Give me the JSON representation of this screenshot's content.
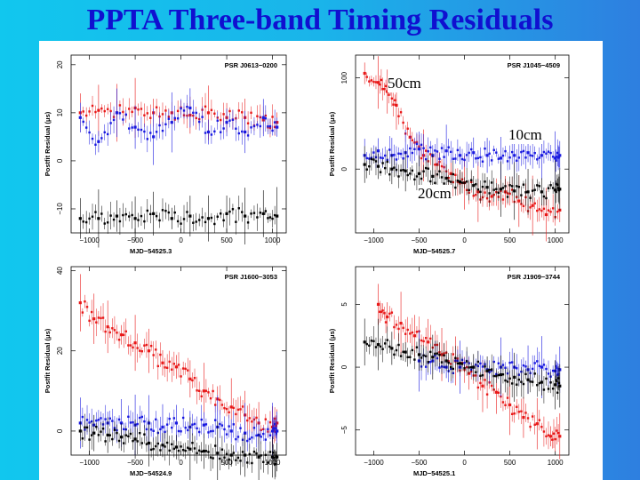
{
  "slide": {
    "title": "PPTA Three-band Timing Residuals"
  },
  "annotations": {
    "band_50cm": "50cm",
    "band_10cm": "10cm",
    "band_20cm": "20cm"
  },
  "colors": {
    "band_50cm": "#e81818",
    "band_10cm": "#1818e0",
    "band_20cm": "#000000"
  },
  "chart_data": [
    {
      "type": "scatter",
      "title": "PSR J0613−0200",
      "xlabel": "MJD−54525.3",
      "ylabel": "Postfit Residual (μs)",
      "xlim": [
        -1200,
        1150
      ],
      "ylim": [
        -15,
        22
      ],
      "xticks": [
        -1000,
        -500,
        0,
        500,
        1000
      ],
      "yticks": [
        -10,
        0,
        10,
        20
      ],
      "series": [
        {
          "name": "50cm",
          "color": "#e81818",
          "x": [
            -1100,
            -900,
            -700,
            -500,
            -300,
            -100,
            100,
            300,
            500,
            700,
            900,
            1050
          ],
          "y": [
            10,
            10.5,
            10,
            11,
            10,
            10,
            9.5,
            10,
            9,
            9,
            8.5,
            8
          ]
        },
        {
          "name": "10cm",
          "color": "#1818e0",
          "x": [
            -1100,
            -900,
            -700,
            -500,
            -300,
            -100,
            100,
            300,
            500,
            700,
            900,
            1050
          ],
          "y": [
            9,
            4,
            10,
            7,
            5,
            8,
            11,
            6,
            8,
            6,
            9,
            7
          ]
        },
        {
          "name": "20cm",
          "color": "#000000",
          "x": [
            -1100,
            -900,
            -700,
            -500,
            -300,
            -100,
            100,
            300,
            500,
            700,
            900,
            1050
          ],
          "y": [
            -12,
            -12,
            -11.5,
            -12,
            -11,
            -12,
            -11.5,
            -12,
            -11,
            -11.5,
            -11,
            -11.5
          ]
        }
      ]
    },
    {
      "type": "scatter",
      "title": "PSR J1045−4509",
      "xlabel": "MJD−54525.7",
      "ylabel": "Postfit Residual (μs)",
      "xlim": [
        -1200,
        1150
      ],
      "ylim": [
        -70,
        125
      ],
      "xticks": [
        -1000,
        -500,
        0,
        500,
        1000
      ],
      "yticks": [
        0,
        100
      ],
      "series": [
        {
          "name": "50cm",
          "color": "#e81818",
          "x": [
            -1100,
            -950,
            -850,
            -750,
            -600,
            -450,
            -300,
            -150,
            0,
            150,
            300,
            450,
            600,
            750,
            900,
            1050
          ],
          "y": [
            105,
            95,
            85,
            70,
            35,
            15,
            5,
            -5,
            -15,
            -25,
            -30,
            -25,
            -35,
            -40,
            -50,
            -45
          ]
        },
        {
          "name": "10cm",
          "color": "#1818e0",
          "x": [
            -1100,
            -950,
            -800,
            -650,
            -500,
            -350,
            -200,
            -50,
            100,
            250,
            400,
            550,
            700,
            850,
            1000,
            1050
          ],
          "y": [
            15,
            20,
            15,
            18,
            22,
            15,
            20,
            15,
            18,
            15,
            12,
            15,
            18,
            15,
            12,
            15
          ]
        },
        {
          "name": "20cm",
          "color": "#000000",
          "x": [
            -1100,
            -950,
            -800,
            -650,
            -500,
            -350,
            -200,
            -50,
            100,
            250,
            400,
            550,
            700,
            850,
            1000,
            1050
          ],
          "y": [
            5,
            3,
            0,
            -2,
            -5,
            -8,
            -10,
            -14,
            -18,
            -20,
            -22,
            -24,
            -25,
            -25,
            -23,
            -22
          ]
        }
      ]
    },
    {
      "type": "scatter",
      "title": "PSR J1600−3053",
      "xlabel": "MJD−54524.9",
      "ylabel": "Postfit Residual (μs)",
      "xlim": [
        -1200,
        1150
      ],
      "ylim": [
        -6,
        41
      ],
      "xticks": [
        -1000,
        -500,
        0,
        500,
        1000
      ],
      "yticks": [
        0,
        20,
        40
      ],
      "series": [
        {
          "name": "50cm",
          "color": "#e81818",
          "x": [
            -1100,
            -950,
            -800,
            -650,
            -500,
            -350,
            -200,
            -50,
            100,
            250,
            400,
            550,
            700,
            850,
            1000,
            1050
          ],
          "y": [
            32,
            28,
            26,
            24,
            22,
            20,
            17,
            16,
            13,
            10,
            8,
            6,
            4,
            2,
            1,
            2
          ]
        },
        {
          "name": "10cm",
          "color": "#1818e0",
          "x": [
            -1100,
            -950,
            -800,
            -650,
            -500,
            -350,
            -200,
            -50,
            100,
            250,
            400,
            550,
            700,
            850,
            1000,
            1050
          ],
          "y": [
            2,
            1.5,
            2,
            2,
            1.5,
            2,
            1,
            2,
            1,
            1.5,
            1,
            0,
            -0.5,
            -1,
            0,
            0
          ]
        },
        {
          "name": "20cm",
          "color": "#000000",
          "x": [
            -1100,
            -950,
            -800,
            -650,
            -500,
            -350,
            -200,
            -50,
            100,
            250,
            400,
            550,
            700,
            850,
            1000,
            1050
          ],
          "y": [
            0,
            -0.5,
            -1,
            -1.5,
            -2,
            -3,
            -3.5,
            -4,
            -4.5,
            -5,
            -5.5,
            -6,
            -6,
            -6.5,
            -6.5,
            -6.5
          ]
        }
      ]
    },
    {
      "type": "scatter",
      "title": "PSR J1909−3744",
      "xlabel": "MJD−54525.1",
      "ylabel": "Postfit Residual (μs)",
      "xlim": [
        -1200,
        1150
      ],
      "ylim": [
        -7,
        8
      ],
      "xticks": [
        -1000,
        -500,
        0,
        500,
        1000
      ],
      "yticks": [
        -5,
        0,
        5
      ],
      "series": [
        {
          "name": "50cm",
          "color": "#e81818",
          "x": [
            -950,
            -850,
            -700,
            -550,
            -400,
            -250,
            -100,
            50,
            200,
            350,
            500,
            650,
            800,
            950,
            1050
          ],
          "y": [
            5,
            4,
            3.5,
            2.5,
            2,
            1,
            0.5,
            -0.5,
            -1.5,
            -2,
            -3,
            -4,
            -4.5,
            -5.5,
            -5.5
          ]
        },
        {
          "name": "10cm",
          "color": "#1818e0",
          "x": [
            -500,
            -350,
            -200,
            -50,
            100,
            250,
            400,
            550,
            700,
            850,
            1000,
            1050
          ],
          "y": [
            0.5,
            0.5,
            0,
            0,
            0,
            -0.2,
            0,
            0,
            -0.2,
            0,
            -0.3,
            -0.2
          ]
        },
        {
          "name": "20cm",
          "color": "#000000",
          "x": [
            -1100,
            -950,
            -800,
            -650,
            -500,
            -350,
            -200,
            -50,
            100,
            250,
            400,
            550,
            700,
            850,
            1000,
            1050
          ],
          "y": [
            2,
            1.8,
            1.5,
            1.2,
            1,
            0.8,
            0.5,
            0.3,
            0,
            -0.3,
            -0.6,
            -0.8,
            -1,
            -1.2,
            -1.4,
            -1.5
          ]
        }
      ]
    }
  ]
}
